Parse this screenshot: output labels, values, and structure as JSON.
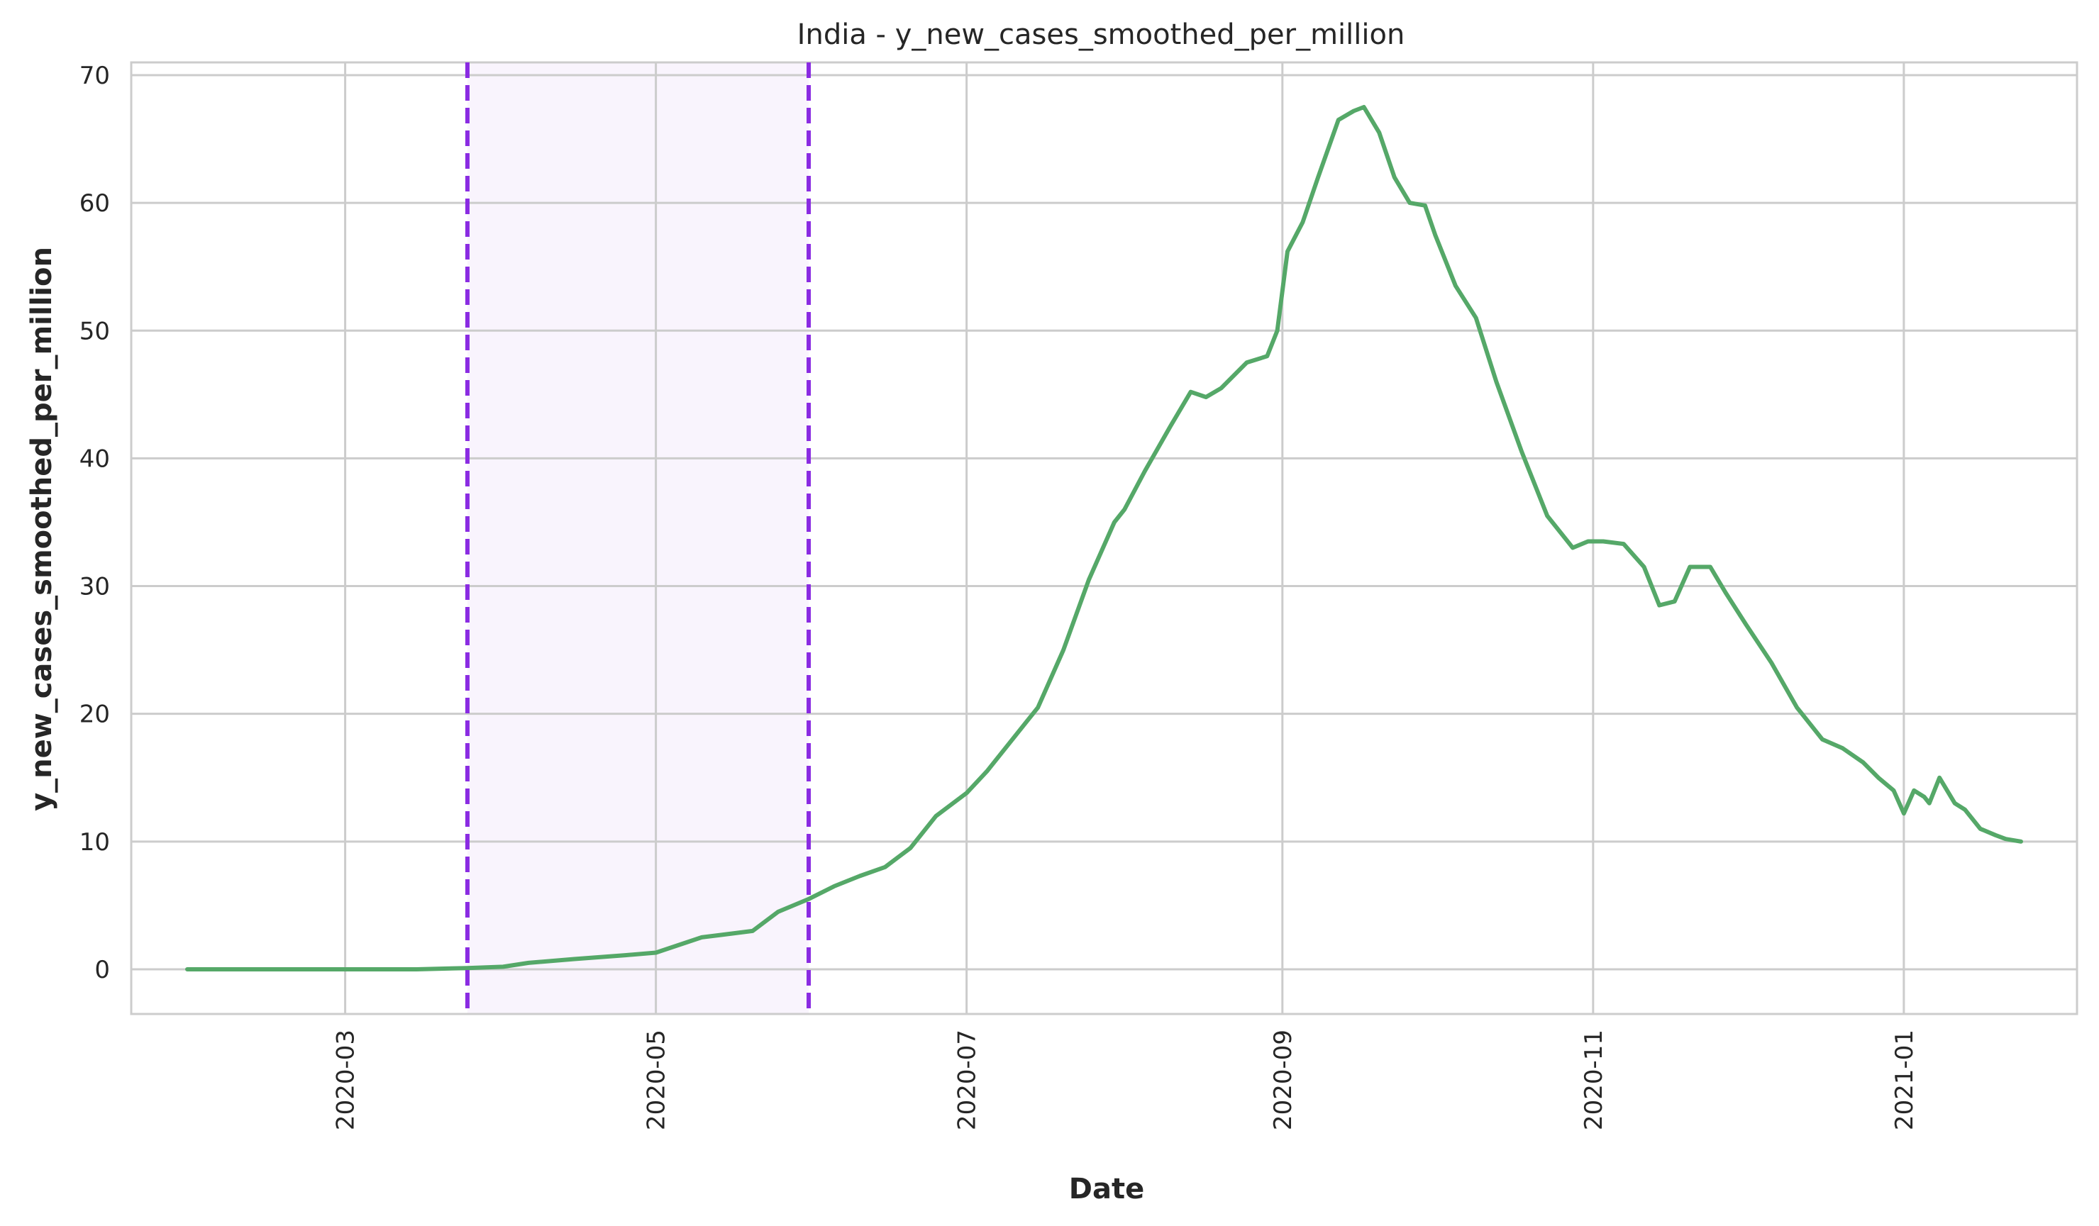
{
  "chart_data": {
    "type": "line",
    "title": "India - y_new_cases_smoothed_per_million",
    "xlabel": "Date",
    "ylabel": "y_new_cases_smoothed_per_million",
    "xlim": [
      "2020-01-19",
      "2021-02-04"
    ],
    "ylim": [
      -3.5,
      71
    ],
    "grid": true,
    "x_ticks": [
      "2020-03",
      "2020-05",
      "2020-07",
      "2020-09",
      "2020-11",
      "2021-01"
    ],
    "y_ticks": [
      0,
      10,
      20,
      30,
      40,
      50,
      60,
      70
    ],
    "colors": {
      "line": "#55a868",
      "marker": "#8a2be2",
      "shade": "#ede0fa",
      "grid": "#cccccc"
    },
    "shaded_region": {
      "x_start": "2020-03-25",
      "x_end": "2020-05-31"
    },
    "vertical_lines": [
      {
        "x": "2020-03-25",
        "style": "dashed"
      },
      {
        "x": "2020-05-31",
        "style": "dashed"
      }
    ],
    "series": [
      {
        "x": [
          "2020-01-30",
          "2020-02-15",
          "2020-03-01",
          "2020-03-15",
          "2020-03-25",
          "2020-04-01",
          "2020-04-06",
          "2020-04-15",
          "2020-04-25",
          "2020-05-01",
          "2020-05-10",
          "2020-05-20",
          "2020-05-25",
          "2020-05-31",
          "2020-06-05",
          "2020-06-10",
          "2020-06-15",
          "2020-06-20",
          "2020-06-25",
          "2020-07-01",
          "2020-07-05",
          "2020-07-10",
          "2020-07-15",
          "2020-07-20",
          "2020-07-25",
          "2020-07-30",
          "2020-08-01",
          "2020-08-05",
          "2020-08-10",
          "2020-08-14",
          "2020-08-17",
          "2020-08-20",
          "2020-08-25",
          "2020-08-29",
          "2020-08-31",
          "2020-09-02",
          "2020-09-05",
          "2020-09-08",
          "2020-09-12",
          "2020-09-15",
          "2020-09-17",
          "2020-09-20",
          "2020-09-23",
          "2020-09-26",
          "2020-09-29",
          "2020-10-01",
          "2020-10-05",
          "2020-10-09",
          "2020-10-13",
          "2020-10-18",
          "2020-10-23",
          "2020-10-28",
          "2020-10-31",
          "2020-11-03",
          "2020-11-07",
          "2020-11-11",
          "2020-11-14",
          "2020-11-17",
          "2020-11-20",
          "2020-11-24",
          "2020-11-27",
          "2020-12-01",
          "2020-12-06",
          "2020-12-11",
          "2020-12-16",
          "2020-12-20",
          "2020-12-24",
          "2020-12-27",
          "2020-12-30",
          "2021-01-01",
          "2021-01-03",
          "2021-01-05",
          "2021-01-06",
          "2021-01-08",
          "2021-01-11",
          "2021-01-13",
          "2021-01-14",
          "2021-01-16",
          "2021-01-19",
          "2021-01-21",
          "2021-01-24"
        ],
        "values": [
          0,
          0,
          0,
          0,
          0.1,
          0.2,
          0.5,
          0.8,
          1.1,
          1.3,
          2.5,
          3.0,
          4.5,
          5.5,
          6.5,
          7.3,
          8.0,
          9.5,
          12.0,
          13.8,
          15.5,
          18.0,
          20.5,
          25.0,
          30.5,
          35.0,
          36.0,
          39.0,
          42.5,
          45.2,
          44.8,
          45.5,
          47.5,
          48.0,
          50.0,
          56.2,
          58.5,
          62.0,
          66.5,
          67.2,
          67.5,
          65.5,
          62.0,
          60.0,
          59.8,
          57.5,
          53.5,
          51.0,
          46.0,
          40.5,
          35.5,
          33.0,
          33.5,
          33.5,
          33.3,
          31.5,
          28.5,
          28.8,
          31.5,
          31.5,
          29.5,
          27.0,
          24.0,
          20.5,
          18.0,
          17.3,
          16.2,
          15.0,
          14.0,
          12.2,
          14.0,
          13.5,
          13.0,
          15.0,
          13.0,
          12.5,
          12.0,
          11.0,
          10.5,
          10.2,
          10.0
        ]
      }
    ]
  }
}
